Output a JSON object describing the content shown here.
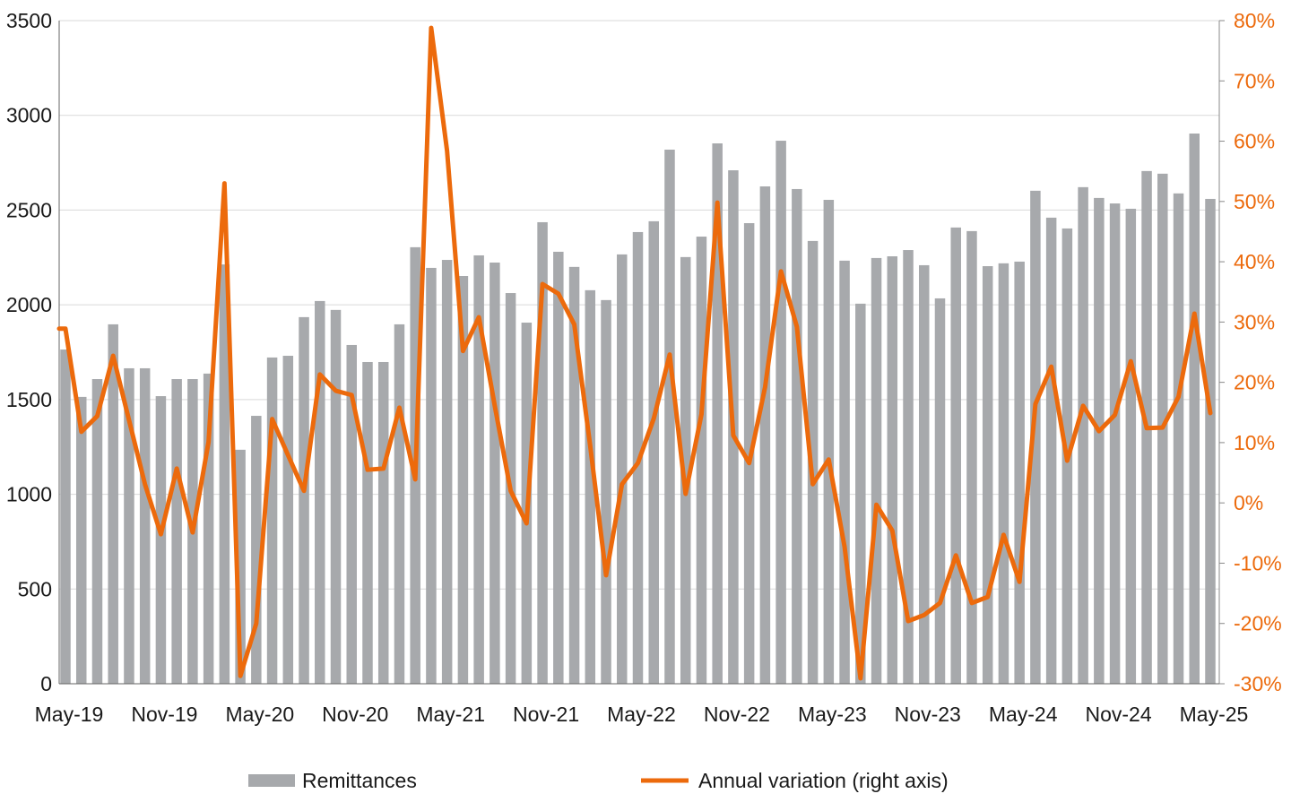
{
  "chart_data": {
    "type": "bar+line",
    "title": "",
    "xlabel": "",
    "ylabel": "",
    "y2label": "",
    "ylim": [
      0,
      3500
    ],
    "y_ticks": [
      "0",
      "500",
      "1000",
      "1500",
      "2000",
      "2500",
      "3000",
      "3500"
    ],
    "y2lim": [
      -30,
      80
    ],
    "y2_ticks": [
      "-30%",
      "-20%",
      "-10%",
      "0%",
      "10%",
      "20%",
      "30%",
      "40%",
      "50%",
      "60%",
      "70%",
      "80%"
    ],
    "x_tick_labels": [
      "May-19",
      "Nov-19",
      "May-20",
      "Nov-20",
      "May-21",
      "Nov-21",
      "May-22",
      "Nov-22",
      "May-23",
      "Nov-23",
      "May-24",
      "Nov-24",
      "May-25"
    ],
    "grid": "horizontal",
    "legend_position": "bottom",
    "colors": {
      "bars": "#a7a9ac",
      "line": "#ec6a0c",
      "grid": "#d9d9d9",
      "y2_axis_text": "#ec6a0c"
    },
    "categories": [
      "May-19",
      "Jun-19",
      "Jul-19",
      "Aug-19",
      "Sep-19",
      "Oct-19",
      "Nov-19",
      "Dec-19",
      "Jan-20",
      "Feb-20",
      "Mar-20",
      "Apr-20",
      "May-20",
      "Jun-20",
      "Jul-20",
      "Aug-20",
      "Sep-20",
      "Oct-20",
      "Nov-20",
      "Dec-20",
      "Jan-21",
      "Feb-21",
      "Mar-21",
      "Apr-21",
      "May-21",
      "Jun-21",
      "Jul-21",
      "Aug-21",
      "Sep-21",
      "Oct-21",
      "Nov-21",
      "Dec-21",
      "Jan-22",
      "Feb-22",
      "Mar-22",
      "Apr-22",
      "May-22",
      "Jun-22",
      "Jul-22",
      "Aug-22",
      "Sep-22",
      "Oct-22",
      "Nov-22",
      "Dec-22",
      "Jan-23",
      "Feb-23",
      "Mar-23",
      "Apr-23",
      "May-23",
      "Jun-23",
      "Jul-23",
      "Aug-23",
      "Sep-23",
      "Oct-23",
      "Nov-23",
      "Dec-23",
      "Jan-24",
      "Feb-24",
      "Mar-24",
      "Apr-24",
      "May-24",
      "Jun-24",
      "Jul-24",
      "Aug-24",
      "Sep-24",
      "Oct-24",
      "Nov-24",
      "Dec-24",
      "Jan-25",
      "Feb-25",
      "Mar-25",
      "Apr-25",
      "May-25"
    ],
    "series": [
      {
        "name": "Remittances",
        "type": "bar",
        "axis": "left",
        "values": [
          1764,
          1514,
          1608,
          1897,
          1665,
          1665,
          1518,
          1608,
          1608,
          1637,
          2213,
          1235,
          1414,
          1722,
          1731,
          1935,
          2020,
          1973,
          1788,
          1698,
          1698,
          1897,
          2304,
          2195,
          2237,
          2152,
          2261,
          2223,
          2062,
          1906,
          2436,
          2280,
          2200,
          2077,
          2025,
          2266,
          2384,
          2441,
          2819,
          2252,
          2360,
          2852,
          2710,
          2431,
          2625,
          2866,
          2611,
          2337,
          2554,
          2233,
          2006,
          2247,
          2256,
          2289,
          2209,
          2034,
          2408,
          2389,
          2204,
          2219,
          2228,
          2602,
          2460,
          2403,
          2621,
          2564,
          2535,
          2507,
          2706,
          2692,
          2588,
          2904,
          2559
        ]
      },
      {
        "name": "Annual variation (right axis)",
        "type": "line",
        "axis": "right",
        "unit": "%",
        "values": [
          28.9,
          11.8,
          14.4,
          24.4,
          13.7,
          3.1,
          -5.2,
          5.7,
          -4.9,
          10.1,
          53.0,
          -28.7,
          -20.0,
          13.9,
          7.9,
          2.0,
          21.3,
          18.6,
          17.9,
          5.5,
          5.7,
          15.8,
          3.9,
          78.8,
          58.4,
          25.2,
          30.8,
          16.1,
          2.0,
          -3.4,
          36.3,
          34.7,
          29.6,
          9.5,
          -12.0,
          3.1,
          6.6,
          14.0,
          24.6,
          1.5,
          14.7,
          49.8,
          11.2,
          6.6,
          19.2,
          38.4,
          29.2,
          3.1,
          7.2,
          -7.3,
          -29.1,
          -0.3,
          -4.6,
          -19.6,
          -18.6,
          -16.6,
          -8.7,
          -16.6,
          -15.6,
          -5.3,
          -13.1,
          16.4,
          22.6,
          7.0,
          16.1,
          11.9,
          14.6,
          23.5,
          12.4,
          12.5,
          17.6,
          31.4,
          14.9
        ]
      }
    ],
    "legend": [
      "Remittances",
      "Annual variation (right axis)"
    ]
  }
}
